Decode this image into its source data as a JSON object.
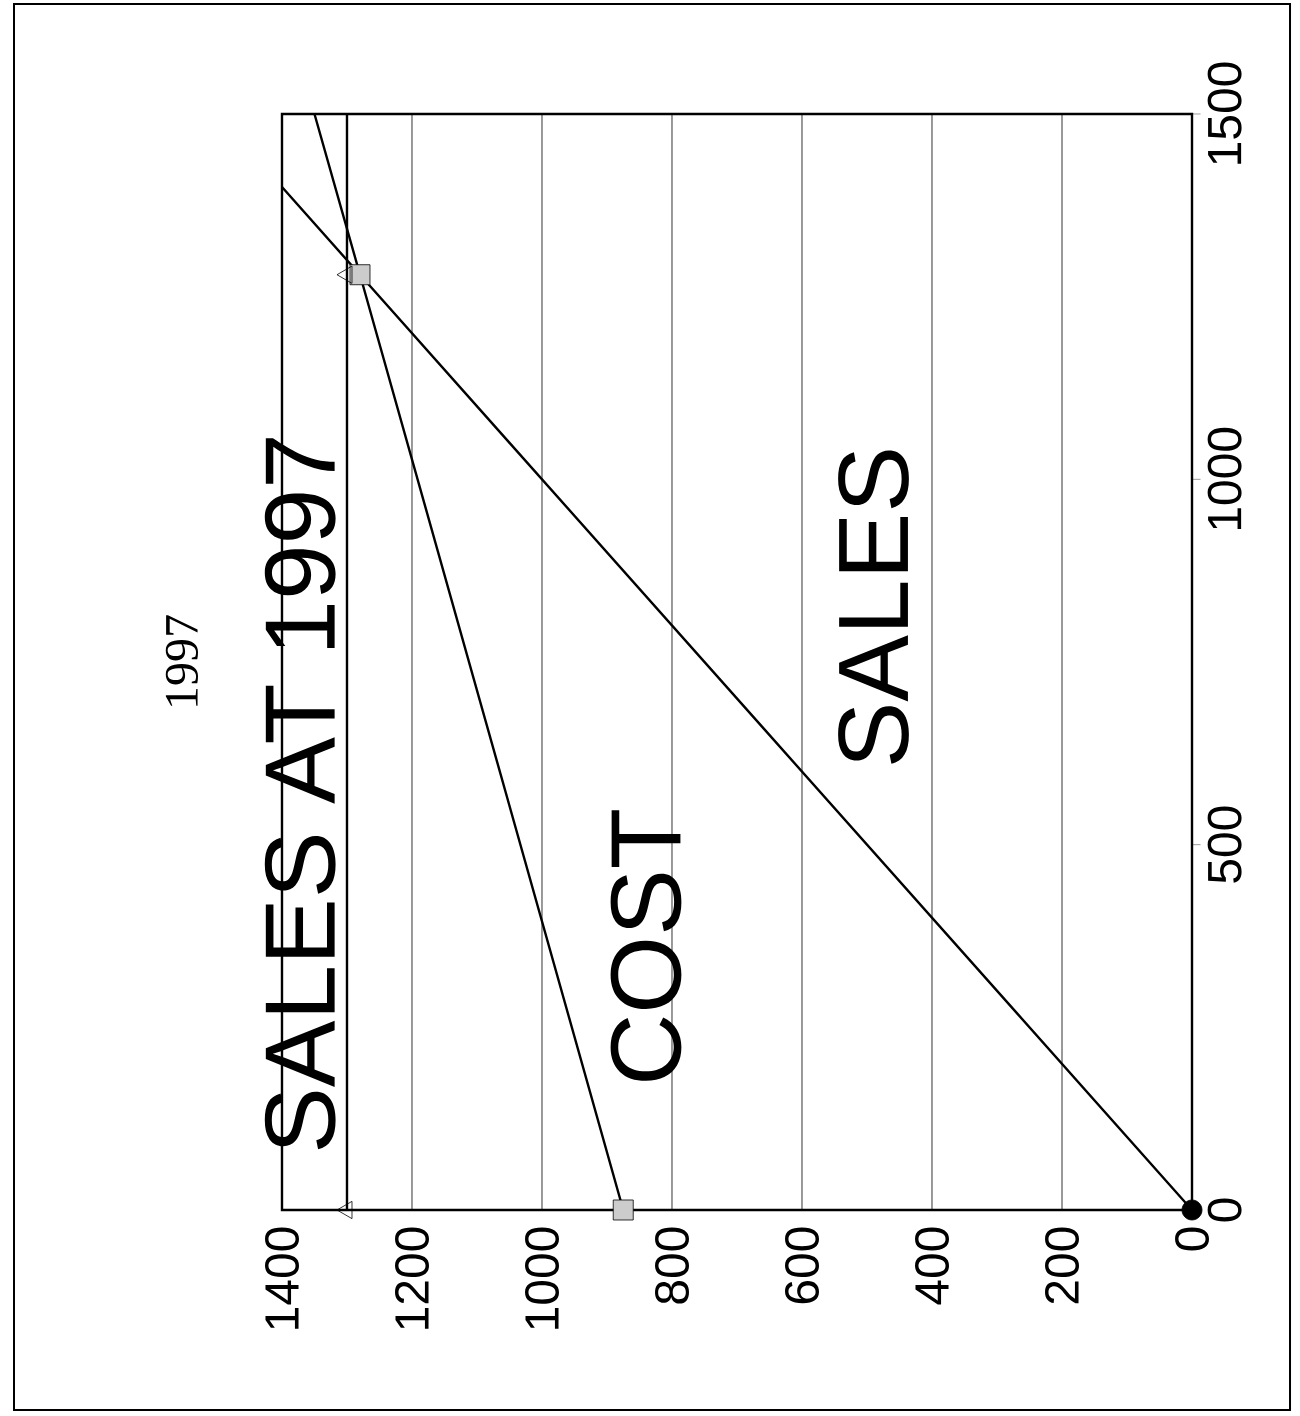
{
  "chart_data": {
    "type": "line",
    "title": "1997",
    "xlim": [
      1400,
      0
    ],
    "ylim": [
      0,
      1500
    ],
    "xticks": [
      0,
      200,
      400,
      600,
      800,
      1000,
      1200,
      1400
    ],
    "yticks": [
      0,
      500,
      1000,
      1500
    ],
    "grid": "x",
    "series": [
      {
        "name": "SALES AT 1997",
        "color": "#000000",
        "marker": "none",
        "x": [
          1300,
          1300
        ],
        "values": [
          0,
          1500
        ]
      },
      {
        "name": "COST",
        "color": "#000000",
        "marker": "none",
        "x": [
          875,
          1280,
          1350
        ],
        "values": [
          0,
          1280,
          1500
        ]
      },
      {
        "name": "SALES",
        "color": "#000000",
        "marker": "none",
        "x": [
          0,
          1280,
          1400
        ],
        "values": [
          0,
          1280,
          1400
        ]
      },
      {
        "type": "scatter",
        "color": "#000000",
        "marker": "circle",
        "x": [
          0
        ],
        "values": [
          0
        ]
      },
      {
        "type": "scatter",
        "color": "#000000",
        "marker": "square",
        "x": [
          875,
          1280
        ],
        "values": [
          0,
          1280
        ]
      },
      {
        "type": "scatter",
        "color": "#000000",
        "marker": "triangle",
        "x": [
          1300,
          1300
        ],
        "values": [
          0,
          1280
        ]
      }
    ]
  }
}
